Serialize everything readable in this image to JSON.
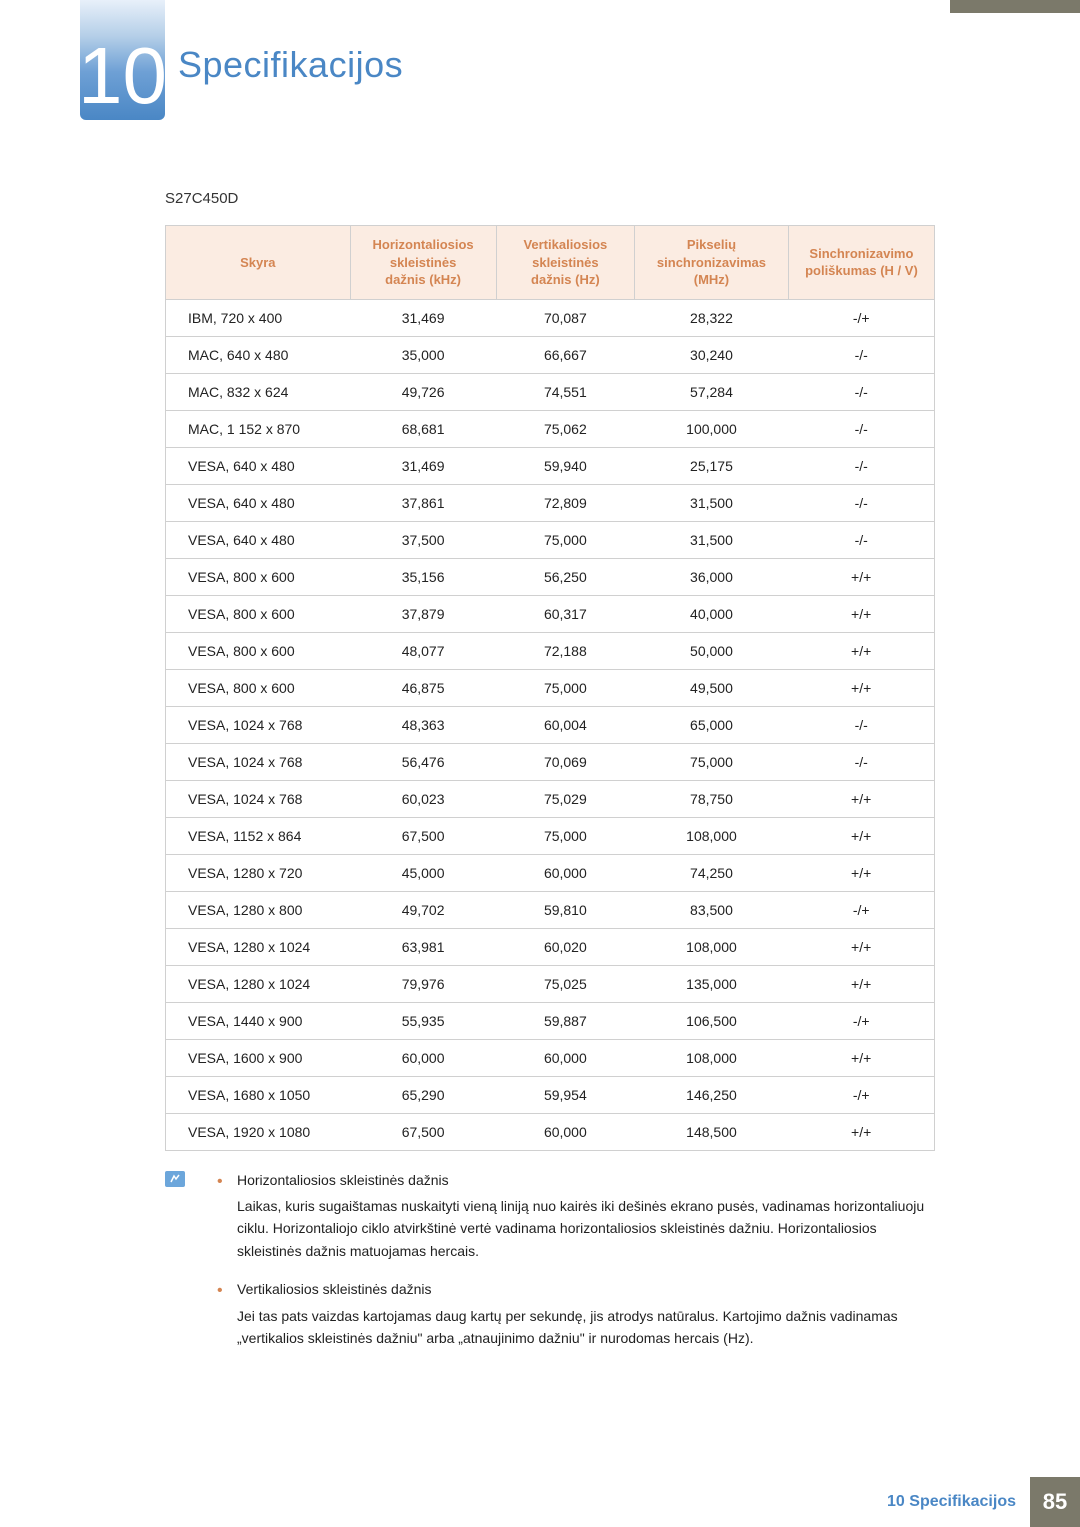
{
  "colors": {
    "accent_blue": "#4a87c5",
    "header_bg": "#fbece2",
    "header_text": "#d48552",
    "border": "#d0d0d0",
    "footer_bg": "#7b796a",
    "text": "#222222"
  },
  "chapter": {
    "number": "10",
    "title": "Specifikacijos"
  },
  "model": "S27C450D",
  "table": {
    "columns": [
      "Skyra",
      "Horizontaliosios\nskleistinės\ndažnis (kHz)",
      "Vertikaliosios\nskleistinės\ndažnis (Hz)",
      "Pikselių\nsinchronizavimas\n(MHz)",
      "Sinchronizavimo\npoliškumas (H / V)"
    ],
    "rows": [
      [
        "IBM, 720 x 400",
        "31,469",
        "70,087",
        "28,322",
        "-/+"
      ],
      [
        "MAC, 640 x 480",
        "35,000",
        "66,667",
        "30,240",
        "-/-"
      ],
      [
        "MAC, 832 x 624",
        "49,726",
        "74,551",
        "57,284",
        "-/-"
      ],
      [
        "MAC, 1 152 x 870",
        "68,681",
        "75,062",
        "100,000",
        "-/-"
      ],
      [
        "VESA, 640 x 480",
        "31,469",
        "59,940",
        "25,175",
        "-/-"
      ],
      [
        "VESA, 640 x 480",
        "37,861",
        "72,809",
        "31,500",
        "-/-"
      ],
      [
        "VESA, 640 x 480",
        "37,500",
        "75,000",
        "31,500",
        "-/-"
      ],
      [
        "VESA, 800 x 600",
        "35,156",
        "56,250",
        "36,000",
        "+/+"
      ],
      [
        "VESA, 800 x 600",
        "37,879",
        "60,317",
        "40,000",
        "+/+"
      ],
      [
        "VESA, 800 x 600",
        "48,077",
        "72,188",
        "50,000",
        "+/+"
      ],
      [
        "VESA, 800 x 600",
        "46,875",
        "75,000",
        "49,500",
        "+/+"
      ],
      [
        "VESA, 1024 x 768",
        "48,363",
        "60,004",
        "65,000",
        "-/-"
      ],
      [
        "VESA, 1024 x 768",
        "56,476",
        "70,069",
        "75,000",
        "-/-"
      ],
      [
        "VESA, 1024 x 768",
        "60,023",
        "75,029",
        "78,750",
        "+/+"
      ],
      [
        "VESA, 1152 x 864",
        "67,500",
        "75,000",
        "108,000",
        "+/+"
      ],
      [
        "VESA, 1280 x 720",
        "45,000",
        "60,000",
        "74,250",
        "+/+"
      ],
      [
        "VESA, 1280 x 800",
        "49,702",
        "59,810",
        "83,500",
        "-/+"
      ],
      [
        "VESA, 1280 x 1024",
        "63,981",
        "60,020",
        "108,000",
        "+/+"
      ],
      [
        "VESA, 1280 x 1024",
        "79,976",
        "75,025",
        "135,000",
        "+/+"
      ],
      [
        "VESA, 1440 x 900",
        "55,935",
        "59,887",
        "106,500",
        "-/+"
      ],
      [
        "VESA, 1600 x 900",
        "60,000",
        "60,000",
        "108,000",
        "+/+"
      ],
      [
        "VESA, 1680 x 1050",
        "65,290",
        "59,954",
        "146,250",
        "-/+"
      ],
      [
        "VESA, 1920 x 1080",
        "67,500",
        "60,000",
        "148,500",
        "+/+"
      ]
    ]
  },
  "notes": [
    {
      "title": "Horizontaliosios skleistinės dažnis",
      "body": "Laikas, kuris sugaištamas nuskaityti vieną liniją nuo kairės iki dešinės ekrano pusės, vadinamas horizontaliuoju ciklu. Horizontaliojo ciklo atvirkštinė vertė vadinama horizontaliosios skleistinės dažniu. Horizontaliosios skleistinės dažnis matuojamas hercais."
    },
    {
      "title": "Vertikaliosios skleistinės dažnis",
      "body": "Jei tas pats vaizdas kartojamas daug kartų per sekundę, jis atrodys natūralus. Kartojimo dažnis vadinamas „vertikalios skleistinės dažniu\" arba „atnaujinimo dažniu\" ir nurodomas hercais (Hz)."
    }
  ],
  "footer": {
    "label": "10 Specifikacijos",
    "page": "85"
  }
}
